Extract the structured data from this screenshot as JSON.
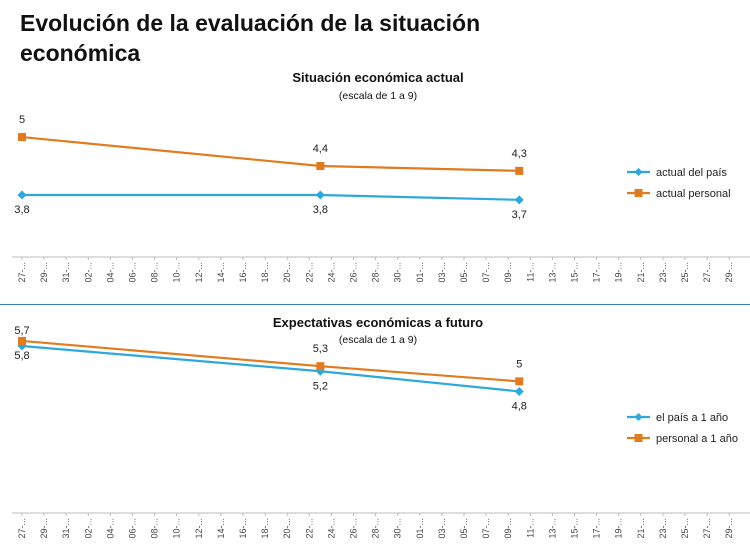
{
  "page_title": "Evolución de la evaluación de la situación económica",
  "colors": {
    "blue": "#2ea8dc",
    "orange": "#e07b1f",
    "divider": "#3a7dbf"
  },
  "x_ticks": [
    "27-...",
    "29-...",
    "31-...",
    "02-...",
    "04-...",
    "06-...",
    "08-...",
    "10-...",
    "12-...",
    "14-...",
    "16-...",
    "18-...",
    "20-...",
    "22-...",
    "24-...",
    "26-...",
    "28-...",
    "30-...",
    "01-...",
    "03-...",
    "05-...",
    "07-...",
    "09-...",
    "11-...",
    "13-...",
    "15-...",
    "17-...",
    "19-...",
    "21-...",
    "23-...",
    "25-...",
    "27-...",
    "29-..."
  ],
  "chart_data": [
    {
      "type": "line",
      "title": "Situación económica actual",
      "subtitle": "(escala de 1 a 9)",
      "x_index": [
        0,
        13.5,
        22.5
      ],
      "legend_position": "right",
      "series": [
        {
          "name": "actual del país",
          "color": "#2ea8dc",
          "marker": "diamond",
          "values": [
            3.8,
            3.8,
            3.7
          ],
          "labels": [
            "3,8",
            "3,8",
            "3,7"
          ],
          "label_pos": "below"
        },
        {
          "name": "actual personal",
          "color": "#e07b1f",
          "marker": "square",
          "values": [
            5,
            4.4,
            4.3
          ],
          "labels": [
            "5",
            "4,4",
            "4,3"
          ],
          "label_pos": "above"
        }
      ]
    },
    {
      "type": "line",
      "title": "Expectativas económicas a futuro",
      "subtitle": "(escala de 1 a 9)",
      "x_index": [
        0,
        13.5,
        22.5
      ],
      "legend_position": "right",
      "series": [
        {
          "name": "el país a 1 año",
          "color": "#2ea8dc",
          "marker": "diamond",
          "values": [
            5.7,
            5.2,
            4.8
          ],
          "labels": [
            "5,7",
            "5,2",
            "4,8"
          ],
          "label_pos": "mixed"
        },
        {
          "name": "personal a 1 año",
          "color": "#e07b1f",
          "marker": "square",
          "values": [
            5.8,
            5.3,
            5
          ],
          "labels": [
            "5,8",
            "5,3",
            "5"
          ],
          "label_pos": "mixed"
        }
      ]
    }
  ]
}
